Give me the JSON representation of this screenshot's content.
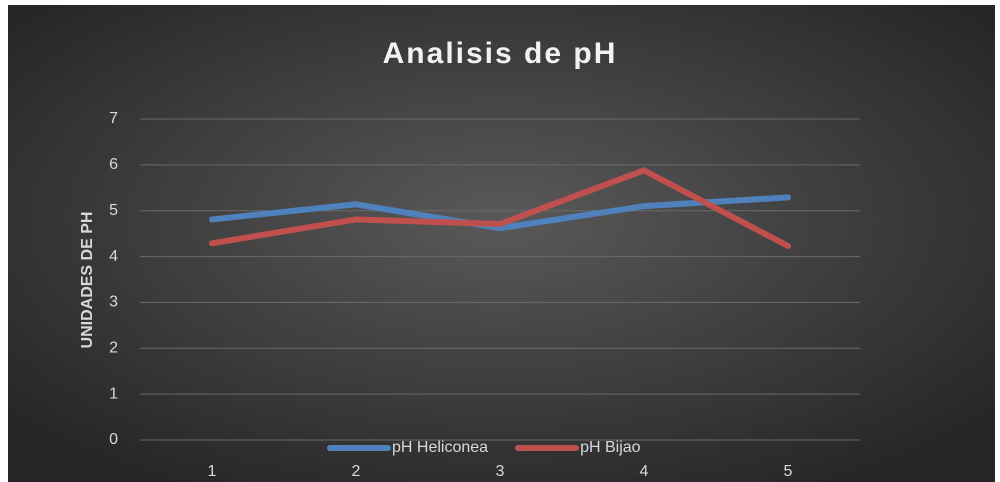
{
  "chart_data": {
    "type": "line",
    "title": "Analisis de pH",
    "y_label": "UNIDADES DE PH",
    "categories": [
      "1",
      "2",
      "3",
      "4",
      "5"
    ],
    "series": [
      {
        "name": "pH Heliconea",
        "color": "#4f81bd",
        "values": [
          4.81,
          5.14,
          4.62,
          5.1,
          5.29
        ]
      },
      {
        "name": "pH Bijao",
        "color": "#c0504d",
        "values": [
          4.29,
          4.81,
          4.71,
          5.88,
          4.23
        ]
      }
    ],
    "ylim": [
      0,
      7
    ],
    "yticks": [
      0,
      1,
      2,
      3,
      4,
      5,
      6,
      7
    ],
    "grid": true,
    "legend": "bottom"
  }
}
